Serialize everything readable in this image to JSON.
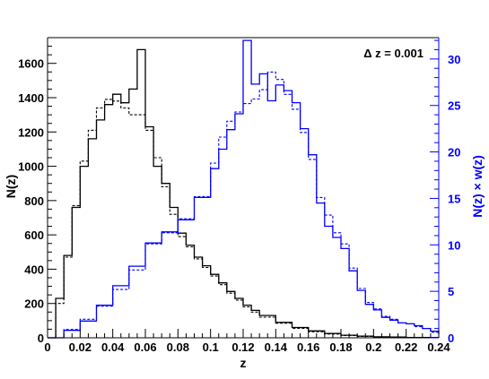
{
  "chart_data": {
    "type": "line",
    "annotation": "Δ z = 0.001",
    "xlabel": "z",
    "ylabel_left": "N(z)",
    "ylabel_right": "N(z) × w(z)",
    "xlim": [
      0,
      0.24
    ],
    "ylim_left": [
      0,
      1750
    ],
    "ylim_right": [
      0,
      32.3
    ],
    "x_ticks": [
      "0",
      "0.02",
      "0.04",
      "0.06",
      "0.08",
      "0.1",
      "0.12",
      "0.14",
      "0.16",
      "0.18",
      "0.2",
      "0.22",
      "0.24"
    ],
    "y_left_ticks": [
      "0",
      "200",
      "400",
      "600",
      "800",
      "1000",
      "1200",
      "1400",
      "1600"
    ],
    "y_right_ticks": [
      "0",
      "5",
      "10",
      "15",
      "20",
      "25",
      "30"
    ],
    "grid": false,
    "colors": {
      "nz": "#000000",
      "nzw": "#0000ff",
      "axis": "#000000"
    },
    "series": [
      {
        "axis": "left",
        "style": "solid",
        "color": "#000000",
        "x": [
          0,
          0.005,
          0.01,
          0.015,
          0.02,
          0.025,
          0.03,
          0.035,
          0.04,
          0.045,
          0.05,
          0.055,
          0.06,
          0.065,
          0.07,
          0.075,
          0.08,
          0.085,
          0.09,
          0.095,
          0.1,
          0.105,
          0.11,
          0.115,
          0.12,
          0.125,
          0.13,
          0.14,
          0.15,
          0.16,
          0.17,
          0.18,
          0.19,
          0.2,
          0.21,
          0.22,
          0.24
        ],
        "y": [
          0,
          230,
          480,
          760,
          1000,
          1160,
          1270,
          1360,
          1420,
          1370,
          1450,
          1680,
          1230,
          1000,
          900,
          760,
          610,
          540,
          470,
          420,
          370,
          320,
          270,
          230,
          190,
          160,
          130,
          90,
          60,
          40,
          25,
          15,
          10,
          6,
          4,
          2,
          0
        ]
      },
      {
        "axis": "left",
        "style": "dashed",
        "color": "#000000",
        "x": [
          0,
          0.005,
          0.01,
          0.015,
          0.02,
          0.025,
          0.03,
          0.035,
          0.04,
          0.045,
          0.05,
          0.055,
          0.06,
          0.065,
          0.07,
          0.075,
          0.08,
          0.085,
          0.09,
          0.095,
          0.1,
          0.105,
          0.11,
          0.115,
          0.12,
          0.125,
          0.13,
          0.14,
          0.15,
          0.16,
          0.17,
          0.18,
          0.19,
          0.2,
          0.21,
          0.22,
          0.24
        ],
        "y": [
          0,
          200,
          470,
          770,
          1030,
          1210,
          1340,
          1390,
          1380,
          1340,
          1300,
          1300,
          1210,
          1050,
          880,
          720,
          590,
          530,
          460,
          410,
          360,
          310,
          260,
          220,
          180,
          150,
          120,
          85,
          55,
          35,
          22,
          13,
          8,
          5,
          3,
          1,
          0
        ]
      },
      {
        "axis": "right",
        "style": "solid",
        "color": "#0000ff",
        "x": [
          0,
          0.01,
          0.02,
          0.03,
          0.04,
          0.05,
          0.06,
          0.07,
          0.08,
          0.09,
          0.1,
          0.105,
          0.11,
          0.115,
          0.12,
          0.125,
          0.13,
          0.135,
          0.14,
          0.145,
          0.15,
          0.155,
          0.16,
          0.165,
          0.17,
          0.175,
          0.18,
          0.185,
          0.19,
          0.195,
          0.2,
          0.205,
          0.21,
          0.215,
          0.22,
          0.225,
          0.23,
          0.235,
          0.24
        ],
        "y": [
          0,
          0.8,
          1.8,
          3.5,
          5.6,
          7.7,
          10.2,
          11.4,
          12.7,
          15.1,
          18.2,
          20.3,
          22.4,
          24.1,
          32,
          27.3,
          28.4,
          25.5,
          27.2,
          26.6,
          25.3,
          22.5,
          19.7,
          14.5,
          12,
          10.8,
          9.6,
          7.2,
          5.1,
          3.6,
          3,
          2.2,
          1.9,
          1.6,
          1.5,
          1.3,
          1,
          0.7,
          0.4
        ]
      },
      {
        "axis": "right",
        "style": "dashed",
        "color": "#0000ff",
        "x": [
          0,
          0.01,
          0.02,
          0.03,
          0.04,
          0.05,
          0.06,
          0.07,
          0.08,
          0.09,
          0.1,
          0.105,
          0.11,
          0.115,
          0.12,
          0.125,
          0.13,
          0.135,
          0.14,
          0.145,
          0.15,
          0.155,
          0.16,
          0.165,
          0.17,
          0.175,
          0.18,
          0.185,
          0.19,
          0.195,
          0.2,
          0.205,
          0.21,
          0.215,
          0.22,
          0.225,
          0.23,
          0.235,
          0.24
        ],
        "y": [
          0,
          0.9,
          2,
          3.4,
          5.2,
          7.3,
          10.1,
          11.3,
          12.8,
          15.2,
          18.8,
          21.6,
          23.3,
          24.3,
          25.2,
          25.7,
          26.7,
          28.6,
          27.8,
          26.2,
          24.6,
          22.1,
          19.2,
          15.1,
          13.2,
          11.3,
          10.1,
          7.5,
          5.3,
          3.8,
          3.1,
          2.3,
          2,
          1.6,
          1.5,
          1.2,
          1,
          0.6,
          0.3
        ]
      }
    ]
  }
}
